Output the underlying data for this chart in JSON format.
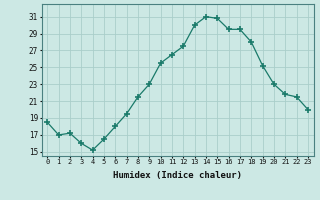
{
  "x": [
    0,
    1,
    2,
    3,
    4,
    5,
    6,
    7,
    8,
    9,
    10,
    11,
    12,
    13,
    14,
    15,
    16,
    17,
    18,
    19,
    20,
    21,
    22,
    23
  ],
  "y": [
    18.5,
    17.0,
    17.2,
    16.0,
    15.2,
    16.5,
    18.0,
    19.5,
    21.5,
    23.0,
    25.5,
    26.5,
    27.5,
    30.0,
    31.0,
    30.8,
    29.5,
    29.5,
    28.0,
    25.2,
    23.0,
    21.8,
    21.5,
    20.0
  ],
  "line_color": "#1a7a6a",
  "marker": "+",
  "marker_size": 4,
  "bg_color": "#cce8e4",
  "grid_color": "#aaceca",
  "xlabel": "Humidex (Indice chaleur)",
  "ylim": [
    14.5,
    32.5
  ],
  "xlim": [
    -0.5,
    23.5
  ],
  "yticks": [
    15,
    17,
    19,
    21,
    23,
    25,
    27,
    29,
    31
  ],
  "xticks": [
    0,
    1,
    2,
    3,
    4,
    5,
    6,
    7,
    8,
    9,
    10,
    11,
    12,
    13,
    14,
    15,
    16,
    17,
    18,
    19,
    20,
    21,
    22,
    23
  ],
  "xtick_labels": [
    "0",
    "1",
    "2",
    "3",
    "4",
    "5",
    "6",
    "7",
    "8",
    "9",
    "10",
    "11",
    "12",
    "13",
    "14",
    "15",
    "16",
    "17",
    "18",
    "19",
    "20",
    "21",
    "22",
    "23"
  ]
}
